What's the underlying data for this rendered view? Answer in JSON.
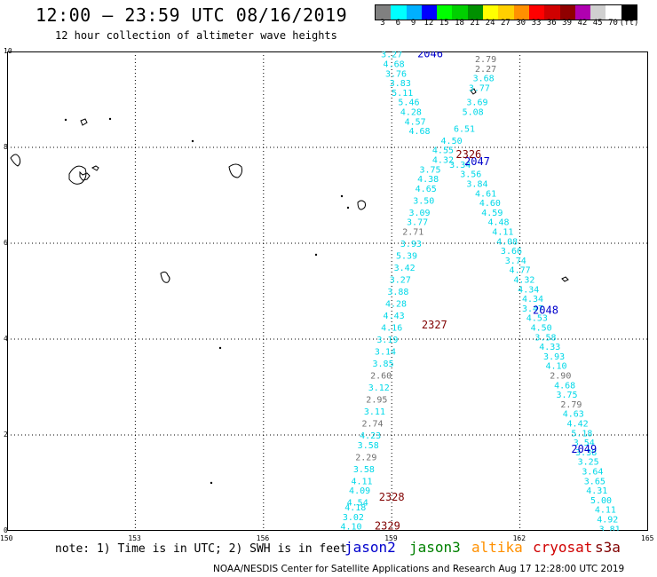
{
  "header": {
    "title": "12:00 – 23:59 UTC 08/16/2019",
    "subtitle": "12 hour collection of altimeter wave heights"
  },
  "colorbar": {
    "colors": [
      "#808080",
      "#00ffff",
      "#00b0ff",
      "#0000ff",
      "#00ff00",
      "#00d000",
      "#009000",
      "#ffff00",
      "#ffd000",
      "#ff9000",
      "#ff0000",
      "#d00000",
      "#900000",
      "#b000b0",
      "#d0d0d0",
      "#ffffff",
      "#000000"
    ],
    "ticks": [
      "3",
      "6",
      "9",
      "12",
      "15",
      "18",
      "21",
      "24",
      "27",
      "30",
      "33",
      "36",
      "39",
      "42",
      "45",
      "70",
      "(ft)"
    ]
  },
  "axes": {
    "x_ticks": [
      "150",
      "153",
      "156",
      "159",
      "162",
      "165"
    ],
    "y_ticks": [
      "0",
      "2",
      "4",
      "6",
      "8",
      "10"
    ],
    "xlim": [
      150,
      165
    ],
    "ylim": [
      0,
      10
    ]
  },
  "colors": {
    "cyan": "#00d8e8",
    "gray": "#707070",
    "blue": "#0000cc",
    "darkred": "#800000",
    "green": "#008000",
    "orange": "#ff9000",
    "red": "#d00000",
    "land": "#000000"
  },
  "tracks": [
    {
      "id": "2046",
      "color": "blue",
      "lon": 159.9,
      "lat": 9.95
    },
    {
      "id": "2047",
      "color": "blue",
      "lon": 161.0,
      "lat": 7.7
    },
    {
      "id": "2048",
      "color": "blue",
      "lon": 162.6,
      "lat": 4.6
    },
    {
      "id": "2049",
      "color": "blue",
      "lon": 163.5,
      "lat": 1.7
    },
    {
      "id": "2326",
      "color": "darkred",
      "lon": 160.8,
      "lat": 7.85
    },
    {
      "id": "2327",
      "color": "darkred",
      "lon": 160.0,
      "lat": 4.3
    },
    {
      "id": "2328",
      "color": "darkred",
      "lon": 159.0,
      "lat": 0.7
    },
    {
      "id": "2329",
      "color": "darkred",
      "lon": 158.9,
      "lat": 0.1
    }
  ],
  "readings": [
    {
      "v": "3.27",
      "lon": 159.0,
      "lat": 9.95,
      "c": "cyan"
    },
    {
      "v": "2.79",
      "lon": 161.2,
      "lat": 9.85,
      "c": "gray"
    },
    {
      "v": "4.68",
      "lon": 159.05,
      "lat": 9.75,
      "c": "cyan"
    },
    {
      "v": "2.27",
      "lon": 161.2,
      "lat": 9.65,
      "c": "gray"
    },
    {
      "v": "3.76",
      "lon": 159.1,
      "lat": 9.55,
      "c": "cyan"
    },
    {
      "v": "3.68",
      "lon": 161.15,
      "lat": 9.45,
      "c": "cyan"
    },
    {
      "v": "3.83",
      "lon": 159.2,
      "lat": 9.35,
      "c": "cyan"
    },
    {
      "v": "3.77",
      "lon": 161.05,
      "lat": 9.25,
      "c": "cyan"
    },
    {
      "v": "5.11",
      "lon": 159.25,
      "lat": 9.15,
      "c": "cyan"
    },
    {
      "v": "5.46",
      "lon": 159.4,
      "lat": 8.95,
      "c": "cyan"
    },
    {
      "v": "3.69",
      "lon": 161.0,
      "lat": 8.95,
      "c": "cyan"
    },
    {
      "v": "4.28",
      "lon": 159.45,
      "lat": 8.75,
      "c": "cyan"
    },
    {
      "v": "5.08",
      "lon": 160.9,
      "lat": 8.75,
      "c": "cyan"
    },
    {
      "v": "4.57",
      "lon": 159.55,
      "lat": 8.55,
      "c": "cyan"
    },
    {
      "v": "4.68",
      "lon": 159.65,
      "lat": 8.35,
      "c": "cyan"
    },
    {
      "v": "6.51",
      "lon": 160.7,
      "lat": 8.4,
      "c": "cyan"
    },
    {
      "v": "4.50",
      "lon": 160.4,
      "lat": 8.15,
      "c": "cyan"
    },
    {
      "v": "4.55",
      "lon": 160.2,
      "lat": 7.95,
      "c": "cyan"
    },
    {
      "v": "4.32",
      "lon": 160.2,
      "lat": 7.75,
      "c": "cyan"
    },
    {
      "v": "3.34",
      "lon": 160.6,
      "lat": 7.65,
      "c": "cyan"
    },
    {
      "v": "3.75",
      "lon": 159.9,
      "lat": 7.55,
      "c": "cyan"
    },
    {
      "v": "3.56",
      "lon": 160.85,
      "lat": 7.45,
      "c": "cyan"
    },
    {
      "v": "4.38",
      "lon": 159.85,
      "lat": 7.35,
      "c": "cyan"
    },
    {
      "v": "3.84",
      "lon": 161.0,
      "lat": 7.25,
      "c": "cyan"
    },
    {
      "v": "4.65",
      "lon": 159.8,
      "lat": 7.15,
      "c": "cyan"
    },
    {
      "v": "4.61",
      "lon": 161.2,
      "lat": 7.05,
      "c": "cyan"
    },
    {
      "v": "3.50",
      "lon": 159.75,
      "lat": 6.9,
      "c": "cyan"
    },
    {
      "v": "4.60",
      "lon": 161.3,
      "lat": 6.85,
      "c": "cyan"
    },
    {
      "v": "3.09",
      "lon": 159.65,
      "lat": 6.65,
      "c": "cyan"
    },
    {
      "v": "4.59",
      "lon": 161.35,
      "lat": 6.65,
      "c": "cyan"
    },
    {
      "v": "3.77",
      "lon": 159.6,
      "lat": 6.45,
      "c": "cyan"
    },
    {
      "v": "4.48",
      "lon": 161.5,
      "lat": 6.45,
      "c": "cyan"
    },
    {
      "v": "2.71",
      "lon": 159.5,
      "lat": 6.25,
      "c": "gray"
    },
    {
      "v": "4.11",
      "lon": 161.6,
      "lat": 6.25,
      "c": "cyan"
    },
    {
      "v": "3.93",
      "lon": 159.45,
      "lat": 6.0,
      "c": "cyan"
    },
    {
      "v": "4.08",
      "lon": 161.7,
      "lat": 6.05,
      "c": "cyan"
    },
    {
      "v": "3.66",
      "lon": 161.8,
      "lat": 5.85,
      "c": "cyan"
    },
    {
      "v": "5.39",
      "lon": 159.35,
      "lat": 5.75,
      "c": "cyan"
    },
    {
      "v": "3.74",
      "lon": 161.9,
      "lat": 5.65,
      "c": "cyan"
    },
    {
      "v": "3.42",
      "lon": 159.3,
      "lat": 5.5,
      "c": "cyan"
    },
    {
      "v": "4.77",
      "lon": 162.0,
      "lat": 5.45,
      "c": "cyan"
    },
    {
      "v": "3.27",
      "lon": 159.2,
      "lat": 5.25,
      "c": "cyan"
    },
    {
      "v": "4.32",
      "lon": 162.1,
      "lat": 5.25,
      "c": "cyan"
    },
    {
      "v": "3.88",
      "lon": 159.15,
      "lat": 5.0,
      "c": "cyan"
    },
    {
      "v": "4.34",
      "lon": 162.2,
      "lat": 5.05,
      "c": "cyan"
    },
    {
      "v": "4.34",
      "lon": 162.3,
      "lat": 4.85,
      "c": "cyan"
    },
    {
      "v": "4.28",
      "lon": 159.1,
      "lat": 4.75,
      "c": "cyan"
    },
    {
      "v": "3.47",
      "lon": 162.3,
      "lat": 4.65,
      "c": "cyan"
    },
    {
      "v": "4.43",
      "lon": 159.05,
      "lat": 4.5,
      "c": "cyan"
    },
    {
      "v": "4.53",
      "lon": 162.4,
      "lat": 4.45,
      "c": "cyan"
    },
    {
      "v": "4.16",
      "lon": 159.0,
      "lat": 4.25,
      "c": "cyan"
    },
    {
      "v": "4.50",
      "lon": 162.5,
      "lat": 4.25,
      "c": "cyan"
    },
    {
      "v": "3.19",
      "lon": 158.9,
      "lat": 4.0,
      "c": "cyan"
    },
    {
      "v": "3.58",
      "lon": 162.6,
      "lat": 4.05,
      "c": "cyan"
    },
    {
      "v": "4.33",
      "lon": 162.7,
      "lat": 3.85,
      "c": "cyan"
    },
    {
      "v": "3.14",
      "lon": 158.85,
      "lat": 3.75,
      "c": "cyan"
    },
    {
      "v": "3.93",
      "lon": 162.8,
      "lat": 3.65,
      "c": "cyan"
    },
    {
      "v": "3.85",
      "lon": 158.8,
      "lat": 3.5,
      "c": "cyan"
    },
    {
      "v": "4.10",
      "lon": 162.85,
      "lat": 3.45,
      "c": "cyan"
    },
    {
      "v": "2.60",
      "lon": 158.75,
      "lat": 3.25,
      "c": "gray"
    },
    {
      "v": "2.90",
      "lon": 162.95,
      "lat": 3.25,
      "c": "gray"
    },
    {
      "v": "3.12",
      "lon": 158.7,
      "lat": 3.0,
      "c": "cyan"
    },
    {
      "v": "4.68",
      "lon": 163.05,
      "lat": 3.05,
      "c": "cyan"
    },
    {
      "v": "3.75",
      "lon": 163.1,
      "lat": 2.85,
      "c": "cyan"
    },
    {
      "v": "2.95",
      "lon": 158.65,
      "lat": 2.75,
      "c": "gray"
    },
    {
      "v": "2.79",
      "lon": 163.2,
      "lat": 2.65,
      "c": "gray"
    },
    {
      "v": "3.11",
      "lon": 158.6,
      "lat": 2.5,
      "c": "cyan"
    },
    {
      "v": "4.63",
      "lon": 163.25,
      "lat": 2.45,
      "c": "cyan"
    },
    {
      "v": "2.74",
      "lon": 158.55,
      "lat": 2.25,
      "c": "gray"
    },
    {
      "v": "4.42",
      "lon": 163.35,
      "lat": 2.25,
      "c": "cyan"
    },
    {
      "v": "4.23",
      "lon": 158.5,
      "lat": 2.0,
      "c": "cyan"
    },
    {
      "v": "5.18",
      "lon": 163.45,
      "lat": 2.05,
      "c": "cyan"
    },
    {
      "v": "3.54",
      "lon": 163.5,
      "lat": 1.85,
      "c": "cyan"
    },
    {
      "v": "3.58",
      "lon": 158.45,
      "lat": 1.8,
      "c": "cyan"
    },
    {
      "v": "3.38",
      "lon": 163.55,
      "lat": 1.65,
      "c": "cyan"
    },
    {
      "v": "2.29",
      "lon": 158.4,
      "lat": 1.55,
      "c": "gray"
    },
    {
      "v": "3.25",
      "lon": 163.6,
      "lat": 1.45,
      "c": "cyan"
    },
    {
      "v": "3.58",
      "lon": 158.35,
      "lat": 1.3,
      "c": "cyan"
    },
    {
      "v": "3.64",
      "lon": 163.7,
      "lat": 1.25,
      "c": "cyan"
    },
    {
      "v": "4.11",
      "lon": 158.3,
      "lat": 1.05,
      "c": "cyan"
    },
    {
      "v": "3.65",
      "lon": 163.75,
      "lat": 1.05,
      "c": "cyan"
    },
    {
      "v": "4.09",
      "lon": 158.25,
      "lat": 0.85,
      "c": "cyan"
    },
    {
      "v": "4.31",
      "lon": 163.8,
      "lat": 0.85,
      "c": "cyan"
    },
    {
      "v": "4.54",
      "lon": 158.2,
      "lat": 0.6,
      "c": "cyan"
    },
    {
      "v": "5.00",
      "lon": 163.9,
      "lat": 0.65,
      "c": "cyan"
    },
    {
      "v": "4.18",
      "lon": 158.15,
      "lat": 0.5,
      "c": "cyan"
    },
    {
      "v": "4.11",
      "lon": 164.0,
      "lat": 0.45,
      "c": "cyan"
    },
    {
      "v": "3.02",
      "lon": 158.1,
      "lat": 0.3,
      "c": "cyan"
    },
    {
      "v": "4.92",
      "lon": 164.05,
      "lat": 0.25,
      "c": "cyan"
    },
    {
      "v": "4.10",
      "lon": 158.05,
      "lat": 0.1,
      "c": "cyan"
    },
    {
      "v": "3.81",
      "lon": 164.1,
      "lat": 0.05,
      "c": "cyan"
    }
  ],
  "footer": {
    "note": "note: 1) Time is in UTC; 2) SWH is in feet",
    "legend": [
      {
        "label": "jason2",
        "color": "blue"
      },
      {
        "label": "jason3",
        "color": "green"
      },
      {
        "label": "altika",
        "color": "orange"
      },
      {
        "label": "cryosat",
        "color": "red"
      },
      {
        "label": "s3a",
        "color": "darkred"
      }
    ],
    "credit": "NOAA/NESDIS Center for Satellite Applications and Research   Aug 17 12:28:00 UTC 2019"
  }
}
